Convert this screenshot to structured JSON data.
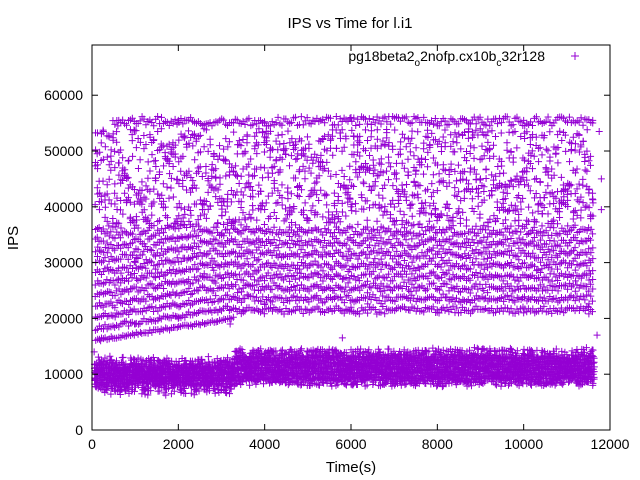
{
  "chart_data": {
    "type": "scatter",
    "title": "IPS vs Time for l.i1",
    "xlabel": "Time(s)",
    "ylabel": "IPS",
    "xlim": [
      0,
      12000
    ],
    "ylim": [
      0,
      69000
    ],
    "xticks": [
      "0",
      "2000",
      "4000",
      "6000",
      "8000",
      "10000",
      "12000"
    ],
    "yticks": [
      "0",
      "10000",
      "20000",
      "30000",
      "40000",
      "50000",
      "60000"
    ],
    "grid": false,
    "legend": "top-right",
    "marker": "+",
    "series": [
      {
        "name_main": "pg18beta2",
        "name_sub1": "o",
        "name_mid": "2nofp.cx10b",
        "name_sub2": "c",
        "name_end": "32r128",
        "color": "#9400D3",
        "x_range": [
          0,
          11640
        ],
        "band_low": {
          "y_min": 6000,
          "y_max": 14500
        },
        "band_high": {
          "y_min": 16000,
          "y_max": 56500
        },
        "sample_points": [
          [
            50,
            14000
          ],
          [
            120,
            10500
          ],
          [
            200,
            7500
          ],
          [
            500,
            8500
          ],
          [
            1000,
            9500
          ],
          [
            2000,
            11000
          ],
          [
            3200,
            12000
          ],
          [
            3400,
            9000
          ],
          [
            4000,
            13000
          ],
          [
            5000,
            14000
          ],
          [
            6000,
            11000
          ],
          [
            7000,
            13500
          ],
          [
            8000,
            12500
          ],
          [
            9000,
            13000
          ],
          [
            10000,
            12000
          ],
          [
            11000,
            13500
          ],
          [
            11600,
            8000
          ],
          [
            200,
            16000
          ],
          [
            1000,
            19000
          ],
          [
            2000,
            20000
          ],
          [
            3200,
            19000
          ],
          [
            3500,
            21500
          ],
          [
            4000,
            22500
          ],
          [
            6000,
            22000
          ],
          [
            8000,
            21500
          ],
          [
            10000,
            21000
          ],
          [
            11500,
            22000
          ],
          [
            1000,
            30000
          ],
          [
            3000,
            35000
          ],
          [
            6000,
            40000
          ],
          [
            9000,
            45000
          ],
          [
            600,
            54500
          ],
          [
            2000,
            55500
          ],
          [
            4000,
            55000
          ],
          [
            6000,
            56000
          ],
          [
            8000,
            55000
          ],
          [
            10000,
            55500
          ],
          [
            11600,
            55500
          ],
          [
            120,
            49500
          ],
          [
            2600,
            28000
          ],
          [
            5800,
            16500
          ],
          [
            11700,
            17000
          ],
          [
            11800,
            45000
          ],
          [
            11750,
            53500
          ],
          [
            11800,
            39500
          ]
        ]
      }
    ]
  }
}
